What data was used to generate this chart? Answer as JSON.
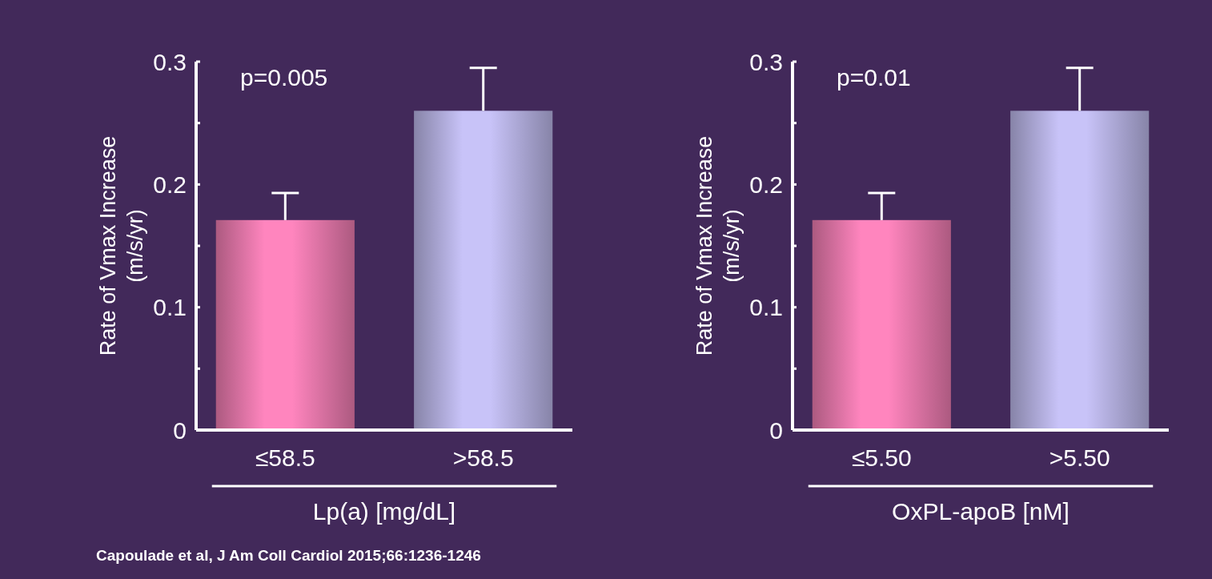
{
  "chart_data": [
    {
      "type": "bar",
      "ylabel": "Rate of Vmax Increase\n(m/s/yr)",
      "xlabel": "Lp(a) [mg/dL]",
      "categories": [
        "≤58.5",
        ">58.5"
      ],
      "values": [
        0.171,
        0.26
      ],
      "colors": [
        "#ff85be",
        "#c8c3f8"
      ],
      "errors": [
        [
          0.171,
          0.193
        ],
        [
          0.26,
          0.295
        ]
      ],
      "ylim": [
        0,
        0.3
      ],
      "yticks": [
        0,
        {
          "value": 0.05,
          "label": null
        },
        0.1,
        {
          "value": 0.15,
          "label": null
        },
        0.2,
        {
          "value": 0.25,
          "label": null
        },
        0.3
      ],
      "annotations": [
        "p=0.005",
        "Capoulade et al, J Am Coll Cardiol 2015;66:1236-1246"
      ]
    },
    {
      "type": "bar",
      "ylabel": "Rate of Vmax Increase\n(m/s/yr)",
      "xlabel": "OxPL-apoB [nM]",
      "categories": [
        "≤5.50",
        ">5.50"
      ],
      "values": [
        0.171,
        0.26
      ],
      "colors": [
        "#ff85be",
        "#c8c3f8"
      ],
      "errors": [
        [
          0.171,
          0.193
        ],
        [
          0.26,
          0.295
        ]
      ],
      "ylim": [
        0,
        0.3
      ],
      "yticks": [
        0,
        {
          "value": 0.05,
          "label": null
        },
        0.1,
        {
          "value": 0.15,
          "label": null
        },
        0.2,
        {
          "value": 0.25,
          "label": null
        },
        0.3
      ],
      "annotations": [
        "p=0.01"
      ]
    }
  ]
}
